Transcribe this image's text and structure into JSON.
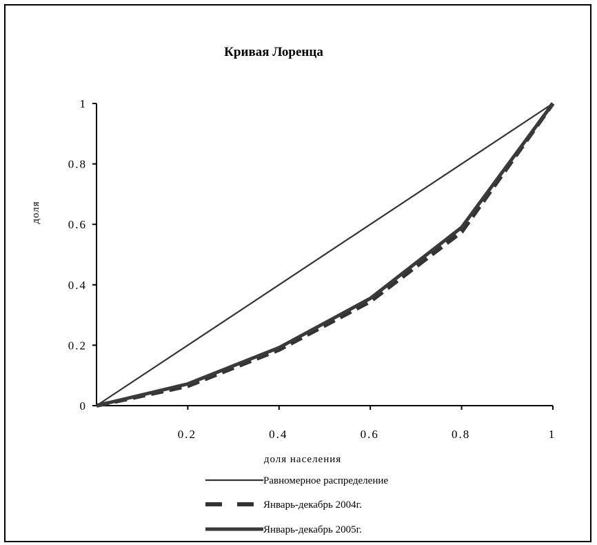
{
  "chart_data": {
    "type": "line",
    "title": "Кривая Лоренца",
    "xlabel": "доля населения",
    "ylabel": "доля",
    "xlim": [
      0,
      1
    ],
    "ylim": [
      0,
      1
    ],
    "xticks": [
      "0.2",
      "0.4",
      "0.6",
      "0.8",
      "1"
    ],
    "yticks": [
      "0",
      "0.2",
      "0.4",
      "0.6",
      "0.8",
      "1"
    ],
    "grid": false,
    "legend_position": "bottom",
    "series": [
      {
        "name": "Равномерное распределение",
        "style": "solid-thin",
        "color": "#333333",
        "x": [
          0,
          0.2,
          0.4,
          0.6,
          0.8,
          1
        ],
        "y": [
          0,
          0.2,
          0.4,
          0.6,
          0.8,
          1
        ]
      },
      {
        "name": "Январь-декабрь 2004г.",
        "style": "dashed-thick",
        "color": "#333333",
        "x": [
          0,
          0.2,
          0.4,
          0.6,
          0.8,
          1
        ],
        "y": [
          0,
          0.065,
          0.185,
          0.345,
          0.575,
          1
        ]
      },
      {
        "name": "Январь-декабрь 2005г.",
        "style": "solid-thick",
        "color": "#3a3a3a",
        "x": [
          0,
          0.2,
          0.4,
          0.6,
          0.8,
          1
        ],
        "y": [
          0,
          0.072,
          0.192,
          0.355,
          0.59,
          1
        ]
      }
    ]
  }
}
